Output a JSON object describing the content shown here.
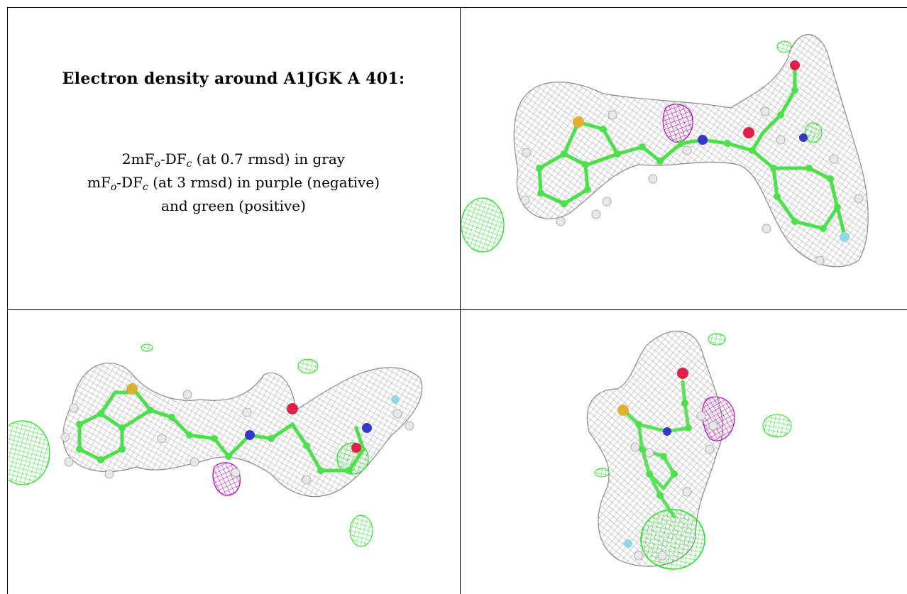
{
  "title": "Electron density around A1JGK A 401:",
  "legend": {
    "line1": {
      "pre": "2mF",
      "sub1": "o",
      "mid": "-DF",
      "sub2": "c",
      "post": " (at 0.7 rmsd) in gray"
    },
    "line2": {
      "pre": "mF",
      "sub1": "o",
      "mid": "-DF",
      "sub2": "c",
      "post": " (at 3 rmsd) in purple (negative)"
    },
    "line3": "and green (positive)"
  },
  "colors": {
    "mesh_gray": "#9a9a9a",
    "mesh_purple": "#c000c0",
    "mesh_green": "#22e022",
    "carbon": "#4ce04c",
    "nitrogen": "#3636c8",
    "oxygen": "#e0204a",
    "sulfur": "#e0b030",
    "fluorine": "#90d8e8",
    "hydrogen": "#e8e8e8",
    "frame": "#000000"
  },
  "views": [
    "density-view-1",
    "density-view-2",
    "density-view-3"
  ]
}
